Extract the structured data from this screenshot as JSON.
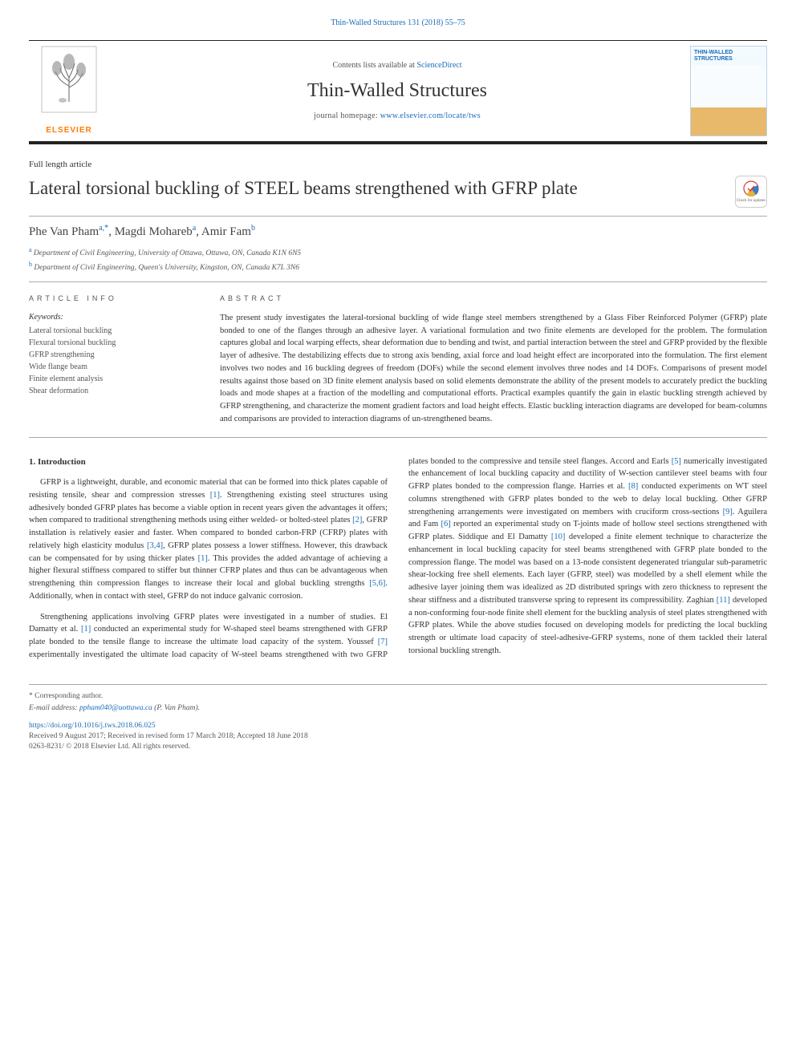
{
  "journal_ref_line": "Thin-Walled Structures 131 (2018) 55–75",
  "header": {
    "contents_prefix": "Contents lists available at ",
    "contents_link_text": "ScienceDirect",
    "journal_title": "Thin-Walled Structures",
    "homepage_prefix": "journal homepage: ",
    "homepage_link_text": "www.elsevier.com/locate/tws",
    "publisher_name": "ELSEVIER",
    "cover_title": "THIN-WALLED STRUCTURES"
  },
  "article_type": "Full length article",
  "paper_title": "Lateral torsional buckling of STEEL beams strengthened with GFRP plate",
  "updates_badge_text": "Check for updates",
  "authors_html": "Phe Van Pham<sup>a,*</sup>, Magdi Mohareb<sup>a</sup>, Amir Fam<sup>b</sup>",
  "affiliations": {
    "a": "Department of Civil Engineering, University of Ottawa, Ottawa, ON, Canada K1N 6N5",
    "b": "Department of Civil Engineering, Queen's University, Kingston, ON, Canada K7L 3N6"
  },
  "info_label": "ARTICLE INFO",
  "abstract_label": "ABSTRACT",
  "keywords_heading": "Keywords:",
  "keywords": [
    "Lateral torsional buckling",
    "Flexural torsional buckling",
    "GFRP strengthening",
    "Wide flange beam",
    "Finite element analysis",
    "Shear deformation"
  ],
  "abstract_text": "The present study investigates the lateral-torsional buckling of wide flange steel members strengthened by a Glass Fiber Reinforced Polymer (GFRP) plate bonded to one of the flanges through an adhesive layer. A variational formulation and two finite elements are developed for the problem. The formulation captures global and local warping effects, shear deformation due to bending and twist, and partial interaction between the steel and GFRP provided by the flexible layer of adhesive. The destabilizing effects due to strong axis bending, axial force and load height effect are incorporated into the formulation. The first element involves two nodes and 16 buckling degrees of freedom (DOFs) while the second element involves three nodes and 14 DOFs. Comparisons of present model results against those based on 3D finite element analysis based on solid elements demonstrate the ability of the present models to accurately predict the buckling loads and mode shapes at a fraction of the modelling and computational efforts. Practical examples quantify the gain in elastic buckling strength achieved by GFRP strengthening, and characterize the moment gradient factors and load height effects. Elastic buckling interaction diagrams are developed for beam-columns and comparisons are provided to interaction diagrams of un-strengthened beams.",
  "section1_heading": "1. Introduction",
  "paragraphs": [
    "GFRP is a lightweight, durable, and economic material that can be formed into thick plates capable of resisting tensile, shear and compression stresses [1]. Strengthening existing steel structures using adhesively bonded GFRP plates has become a viable option in recent years given the advantages it offers; when compared to traditional strengthening methods using either welded- or bolted-steel plates [2], GFRP installation is relatively easier and faster. When compared to bonded carbon-FRP (CFRP) plates with relatively high elasticity modulus [3,4], GFRP plates possess a lower stiffness. However, this drawback can be compensated for by using thicker plates [1]. This provides the added advantage of achieving a higher flexural stiffness compared to stiffer but thinner CFRP plates and thus can be advantageous when strengthening thin compression flanges to increase their local and global buckling strengths [5,6]. Additionally, when in contact with steel, GFRP do not induce galvanic corrosion.",
    "Strengthening applications involving GFRP plates were investigated in a number of studies. El Damatty et al. [1] conducted an experimental study for W-shaped steel beams strengthened with GFRP plate bonded to the tensile flange to increase the ultimate load capacity of the system. Youssef [7] experimentally investigated the ultimate load capacity of W-steel beams strengthened with two GFRP plates bonded to the compressive and tensile steel flanges. Accord and Earls [5] numerically investigated the enhancement of local buckling capacity and ductility of W-section cantilever steel beams with four GFRP plates bonded to the compression flange. Harries et al. [8] conducted experiments on WT steel columns strengthened with GFRP plates bonded to the web to delay local buckling. Other GFRP strengthening arrangements were investigated on members with cruciform cross-sections [9]. Aguilera and Fam [6] reported an experimental study on T-joints made of hollow steel sections strengthened with GFRP plates. Siddique and El Damatty [10] developed a finite element technique to characterize the enhancement in local buckling capacity for steel beams strengthened with GFRP plate bonded to the compression flange. The model was based on a 13-node consistent degenerated triangular sub-parametric shear-locking free shell elements. Each layer (GFRP, steel) was modelled by a shell element while the adhesive layer joining them was idealized as 2D distributed springs with zero thickness to represent the shear stiffness and a distributed transverse spring to represent its compressibility. Zaghian [11] developed a non-conforming four-node finite shell element for the buckling analysis of steel plates strengthened with GFRP plates. While the above studies focused on developing models for predicting the local buckling strength or ultimate load capacity of steel-adhesive-GFRP systems, none of them tackled their lateral torsional buckling strength."
  ],
  "footer": {
    "corr_note": "* Corresponding author.",
    "email_label": "E-mail address:",
    "email": "ppham040@uottawa.ca",
    "email_owner": "(P. Van Pham).",
    "doi": "https://doi.org/10.1016/j.tws.2018.06.025",
    "history": "Received 9 August 2017; Received in revised form 17 March 2018; Accepted 18 June 2018",
    "copyright": "0263-8231/ © 2018 Elsevier Ltd. All rights reserved."
  },
  "colors": {
    "link_blue": "#1a6bb8",
    "publisher_orange": "#ff7a00",
    "rule_dark": "#222222",
    "text_body": "#333333",
    "text_muted": "#555555",
    "cover_border": "#bcd3e8"
  },
  "ref_citations": [
    "[1]",
    "[2]",
    "[3,4]",
    "[5]",
    "[5,6]",
    "[6]",
    "[7]",
    "[8]",
    "[9]",
    "[10]",
    "[11]"
  ]
}
